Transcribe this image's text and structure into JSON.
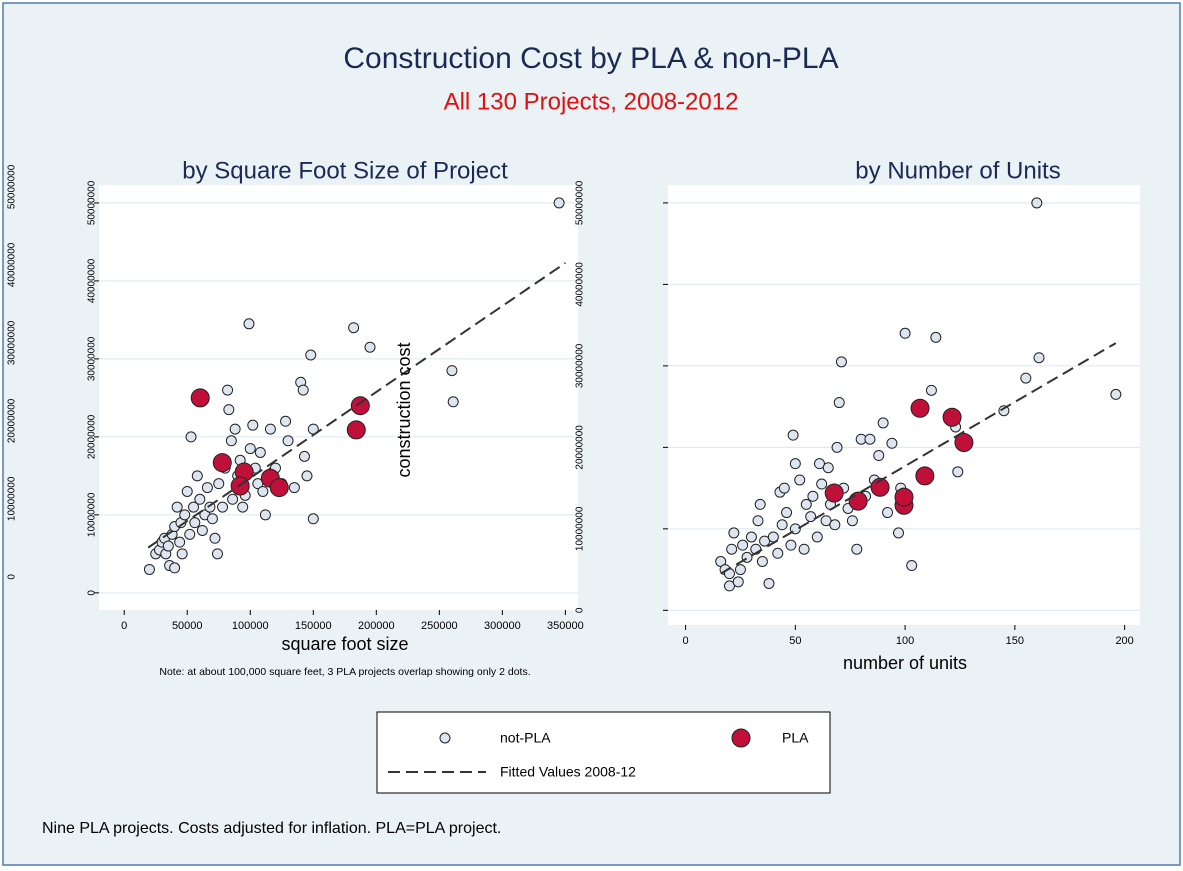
{
  "title": "Construction Cost by PLA & non-PLA",
  "subtitle": "All 130 Projects, 2008-2012",
  "footnote": "Nine PLA projects.  Costs adjusted for inflation.  PLA=PLA project.",
  "chart_data": [
    {
      "type": "scatter",
      "title": "by Square Foot Size of Project",
      "xlabel": "square foot size",
      "note": "Note: at about 100,000 square feet, 3 PLA projects overlap showing only 2 dots.",
      "xlim": [
        -20000,
        360000
      ],
      "ylim": [
        -2200000,
        52300000
      ],
      "xticks": [
        0,
        50000,
        100000,
        150000,
        200000,
        250000,
        300000,
        350000
      ],
      "yticks": [
        0,
        10000000,
        20000000,
        30000000,
        40000000,
        50000000
      ],
      "grid": true,
      "series": [
        {
          "name": "not-PLA",
          "color": "#dde6f0",
          "x": [
            20000,
            25000,
            28000,
            30000,
            32000,
            33000,
            35000,
            36000,
            38000,
            40000,
            40000,
            42000,
            44000,
            45000,
            46000,
            48000,
            50000,
            52000,
            53000,
            55000,
            56000,
            58000,
            60000,
            62000,
            64000,
            66000,
            68000,
            70000,
            72000,
            74000,
            75000,
            78000,
            80000,
            82000,
            83000,
            85000,
            86000,
            88000,
            90000,
            92000,
            94000,
            96000,
            99000,
            100000,
            102000,
            104000,
            106000,
            108000,
            110000,
            112000,
            116000,
            118000,
            120000,
            125000,
            128000,
            130000,
            135000,
            140000,
            142000,
            143000,
            145000,
            148000,
            150000,
            150000,
            182000,
            195000,
            260000,
            261000,
            345000
          ],
          "values": [
            3000000,
            5000000,
            5500000,
            6500000,
            7000000,
            5000000,
            6000000,
            3500000,
            7500000,
            3200000,
            8500000,
            11000000,
            6500000,
            9000000,
            5000000,
            10000000,
            13000000,
            7500000,
            20000000,
            11000000,
            9000000,
            15000000,
            12000000,
            8000000,
            10000000,
            13500000,
            11000000,
            9500000,
            7000000,
            5000000,
            14000000,
            11000000,
            16000000,
            26000000,
            23500000,
            19500000,
            12000000,
            21000000,
            15000000,
            17000000,
            11000000,
            12500000,
            34500000,
            18500000,
            21500000,
            16000000,
            14000000,
            18000000,
            13000000,
            10000000,
            21000000,
            15500000,
            16000000,
            14000000,
            22000000,
            19500000,
            13500000,
            27000000,
            26000000,
            17500000,
            15000000,
            30500000,
            21000000,
            9500000,
            34000000,
            31500000,
            28500000,
            24500000,
            50000000
          ]
        },
        {
          "name": "PLA",
          "color": "#c0103a",
          "x": [
            60300,
            77800,
            95200,
            92000,
            115900,
            123000,
            187300,
            184100
          ],
          "values": [
            25000000,
            16700000,
            15500000,
            13700000,
            14700000,
            13500000,
            24000000,
            20900000
          ]
        },
        {
          "name": "Fitted Values 2008-12",
          "type": "line",
          "style": "dashed",
          "color": "#333333",
          "x": [
            19000,
            350000
          ],
          "values": [
            5800000,
            42300000
          ]
        }
      ]
    },
    {
      "type": "scatter",
      "title": "by Number of Units",
      "xlabel": "number of units",
      "ylabel": "construction cost",
      "xlim": [
        -8,
        207
      ],
      "ylim": [
        -1800000,
        52200000
      ],
      "xticks": [
        0,
        50,
        100,
        150,
        200
      ],
      "yticks": [
        0,
        10000000,
        20000000,
        30000000,
        40000000,
        50000000
      ],
      "grid": true,
      "series": [
        {
          "name": "not-PLA",
          "color": "#dde6f0",
          "x": [
            16,
            18,
            20,
            20,
            21,
            22,
            24,
            25,
            26,
            28,
            30,
            32,
            33,
            34,
            35,
            36,
            38,
            40,
            42,
            43,
            44,
            45,
            46,
            48,
            49,
            50,
            50,
            52,
            54,
            55,
            57,
            58,
            60,
            61,
            62,
            64,
            65,
            66,
            68,
            69,
            70,
            71,
            72,
            74,
            76,
            78,
            80,
            82,
            84,
            86,
            88,
            90,
            92,
            94,
            97,
            98,
            100,
            103,
            112,
            114,
            123,
            124,
            145,
            155,
            160,
            161,
            196
          ],
          "values": [
            6000000,
            5000000,
            3000000,
            4500000,
            7500000,
            9500000,
            3500000,
            5000000,
            8000000,
            6500000,
            9000000,
            7500000,
            11000000,
            13000000,
            6000000,
            8500000,
            3300000,
            9000000,
            7000000,
            14500000,
            10500000,
            15000000,
            12000000,
            8000000,
            21500000,
            18000000,
            10000000,
            16000000,
            7500000,
            13000000,
            11500000,
            14000000,
            9000000,
            18000000,
            15500000,
            11000000,
            17500000,
            13000000,
            10500000,
            20000000,
            25500000,
            30500000,
            15000000,
            12500000,
            11000000,
            7500000,
            21000000,
            14000000,
            21000000,
            16000000,
            19000000,
            23000000,
            12000000,
            20500000,
            9500000,
            15000000,
            34000000,
            5500000,
            27000000,
            33500000,
            22500000,
            17000000,
            24500000,
            28500000,
            50000000,
            31000000,
            26500000
          ]
        },
        {
          "name": "PLA",
          "color": "#c0103a",
          "x": [
            67.7,
            78.6,
            88.6,
            99.5,
            99.5,
            106.8,
            109,
            121.4,
            126.8
          ],
          "values": [
            14400000,
            13400000,
            15100000,
            12900000,
            13900000,
            24800000,
            16500000,
            23700000,
            20600000
          ]
        },
        {
          "name": "Fitted Values 2008-12",
          "type": "line",
          "style": "dashed",
          "color": "#333333",
          "x": [
            16,
            196
          ],
          "values": [
            4500000,
            32800000
          ]
        }
      ]
    }
  ]
}
